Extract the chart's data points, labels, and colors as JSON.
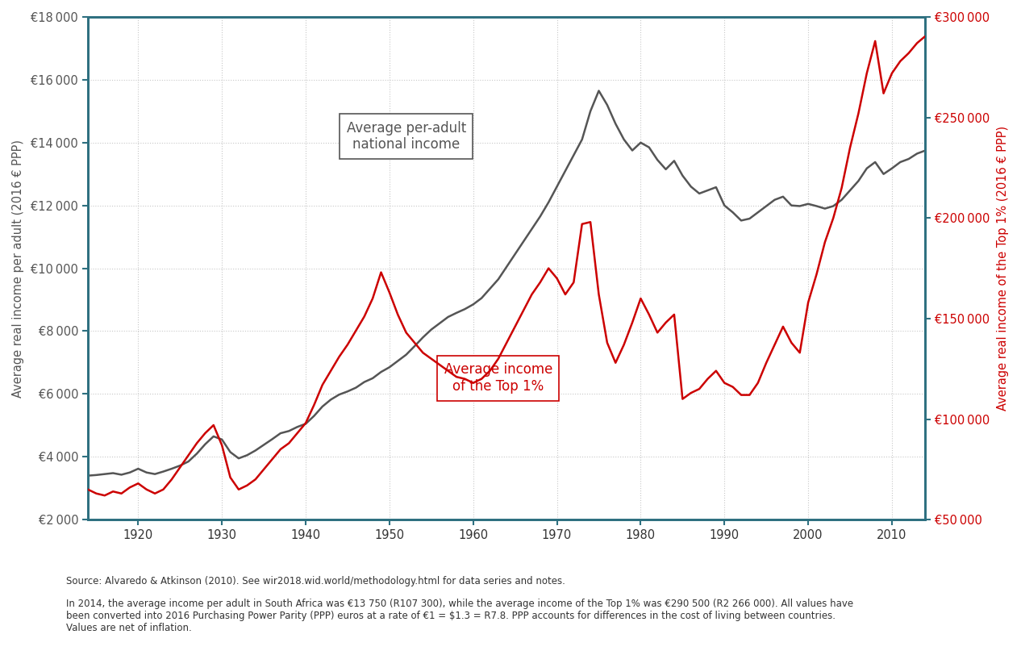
{
  "ylabel_left": "Average real income per adult (2016 € PPP)",
  "ylabel_right": "Average real income of the Top 1% (2016 € PPP)",
  "source_text": "Source: Alvaredo & Atkinson (2010). See wir2018.wid.world/methodology.html for data series and notes.",
  "note_text": "In 2014, the average income per adult in South Africa was €13 750 (R107 300), while the average income of the Top 1% was €290 500 (R2 266 000). All values have\nbeen converted into 2016 Purchasing Power Parity (PPP) euros at a rate of €1 = $1.3 = R7.8. PPP accounts for differences in the cost of living between countries.\nValues are net of inflation.",
  "left_color": "#555555",
  "right_color": "#cc0000",
  "axis_color": "#2e7080",
  "background_color": "#ffffff",
  "grid_color": "#c8c8c8",
  "ylim_left": [
    2000,
    18000
  ],
  "ylim_right": [
    50000,
    300000
  ],
  "yticks_left": [
    2000,
    4000,
    6000,
    8000,
    10000,
    12000,
    14000,
    16000,
    18000
  ],
  "yticks_right": [
    50000,
    100000,
    150000,
    200000,
    250000,
    300000
  ],
  "xlim": [
    1914,
    2014
  ],
  "xticks": [
    1920,
    1930,
    1940,
    1950,
    1960,
    1970,
    1980,
    1990,
    2000,
    2010
  ],
  "avg_income_years": [
    1914,
    1915,
    1916,
    1917,
    1918,
    1919,
    1920,
    1921,
    1922,
    1923,
    1924,
    1925,
    1926,
    1927,
    1928,
    1929,
    1930,
    1931,
    1932,
    1933,
    1934,
    1935,
    1936,
    1937,
    1938,
    1939,
    1940,
    1941,
    1942,
    1943,
    1944,
    1945,
    1946,
    1947,
    1948,
    1949,
    1950,
    1951,
    1952,
    1953,
    1954,
    1955,
    1956,
    1957,
    1958,
    1959,
    1960,
    1961,
    1962,
    1963,
    1964,
    1965,
    1966,
    1967,
    1968,
    1969,
    1970,
    1971,
    1972,
    1973,
    1974,
    1975,
    1976,
    1977,
    1978,
    1979,
    1980,
    1981,
    1982,
    1983,
    1984,
    1985,
    1986,
    1987,
    1988,
    1989,
    1990,
    1991,
    1992,
    1993,
    1994,
    1995,
    1996,
    1997,
    1998,
    1999,
    2000,
    2001,
    2002,
    2003,
    2004,
    2005,
    2006,
    2007,
    2008,
    2009,
    2010,
    2011,
    2012,
    2013,
    2014
  ],
  "avg_income_vals": [
    3400,
    3420,
    3450,
    3480,
    3430,
    3500,
    3620,
    3500,
    3450,
    3530,
    3620,
    3720,
    3850,
    4100,
    4400,
    4650,
    4550,
    4150,
    3950,
    4050,
    4200,
    4380,
    4560,
    4750,
    4820,
    4950,
    5050,
    5300,
    5600,
    5820,
    5980,
    6080,
    6200,
    6380,
    6500,
    6700,
    6850,
    7050,
    7250,
    7520,
    7800,
    8050,
    8250,
    8450,
    8580,
    8700,
    8850,
    9050,
    9350,
    9650,
    10050,
    10450,
    10850,
    11250,
    11650,
    12100,
    12600,
    13100,
    13600,
    14100,
    15000,
    15650,
    15200,
    14600,
    14100,
    13750,
    14000,
    13850,
    13450,
    13150,
    13420,
    12950,
    12600,
    12380,
    12480,
    12580,
    12000,
    11780,
    11520,
    11580,
    11780,
    11980,
    12180,
    12280,
    12000,
    11980,
    12050,
    11980,
    11900,
    11980,
    12180,
    12480,
    12780,
    13180,
    13380,
    13000,
    13180,
    13380,
    13480,
    13650,
    13750
  ],
  "top1_years": [
    1914,
    1915,
    1916,
    1917,
    1918,
    1919,
    1920,
    1921,
    1922,
    1923,
    1924,
    1925,
    1926,
    1927,
    1928,
    1929,
    1930,
    1931,
    1932,
    1933,
    1934,
    1935,
    1936,
    1937,
    1938,
    1939,
    1940,
    1941,
    1942,
    1943,
    1944,
    1945,
    1946,
    1947,
    1948,
    1949,
    1950,
    1951,
    1952,
    1953,
    1954,
    1955,
    1956,
    1957,
    1958,
    1959,
    1960,
    1961,
    1962,
    1963,
    1964,
    1965,
    1966,
    1967,
    1968,
    1969,
    1970,
    1971,
    1972,
    1973,
    1974,
    1975,
    1976,
    1977,
    1978,
    1979,
    1980,
    1981,
    1982,
    1983,
    1984,
    1985,
    1986,
    1987,
    1988,
    1989,
    1990,
    1991,
    1992,
    1993,
    1994,
    1995,
    1996,
    1997,
    1998,
    1999,
    2000,
    2001,
    2002,
    2003,
    2004,
    2005,
    2006,
    2007,
    2008,
    2009,
    2010,
    2011,
    2012,
    2013,
    2014
  ],
  "top1_vals": [
    65000,
    63000,
    62000,
    64000,
    63000,
    66000,
    68000,
    65000,
    63000,
    65000,
    70000,
    76000,
    82000,
    88000,
    93000,
    97000,
    87000,
    71000,
    65000,
    67000,
    70000,
    75000,
    80000,
    85000,
    88000,
    93000,
    98000,
    107000,
    117000,
    124000,
    131000,
    137000,
    144000,
    151000,
    160000,
    173000,
    163000,
    152000,
    143000,
    138000,
    133000,
    130000,
    127000,
    124000,
    121000,
    120000,
    118000,
    120000,
    124000,
    130000,
    138000,
    146000,
    154000,
    162000,
    168000,
    175000,
    170000,
    162000,
    168000,
    197000,
    198000,
    162000,
    138000,
    128000,
    137000,
    148000,
    160000,
    152000,
    143000,
    148000,
    152000,
    110000,
    113000,
    115000,
    120000,
    124000,
    118000,
    116000,
    112000,
    112000,
    118000,
    128000,
    137000,
    146000,
    138000,
    133000,
    158000,
    172000,
    188000,
    200000,
    215000,
    235000,
    252000,
    272000,
    288000,
    262000,
    272000,
    278000,
    282000,
    287000,
    290500
  ],
  "ann_gray_text": "Average per-adult\nnational income",
  "ann_gray_x": 1952,
  "ann_gray_y": 14200,
  "ann_red_text": "Average income\nof the Top 1%",
  "ann_red_x": 1963,
  "ann_red_y": 6500
}
